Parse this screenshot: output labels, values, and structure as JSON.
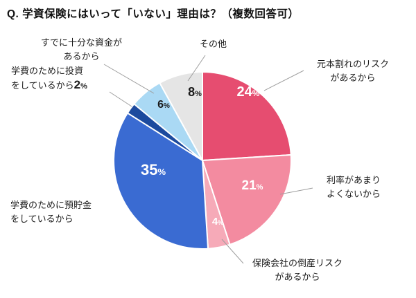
{
  "chart_data": {
    "type": "pie",
    "title": "Q. 学資保険にはいって「いない」理由は？（複数回答可）",
    "unit": "%",
    "total": 100,
    "start_angle_deg": 0,
    "direction": "clockwise",
    "legend_position": "none",
    "slices": [
      {
        "label": "元本割れのリスクがあるから",
        "label_lines": [
          "元本割れのリスク",
          "があるから"
        ],
        "value": 24,
        "color": "#e64d70",
        "pct_color": "#ffffff"
      },
      {
        "label": "利率があまりよくないから",
        "label_lines": [
          "利率があまり",
          "よくないから"
        ],
        "value": 21,
        "color": "#f38ba0",
        "pct_color": "#ffffff"
      },
      {
        "label": "保険会社の倒産リスクがあるから",
        "label_lines": [
          "保険会社の倒産リスク",
          "があるから"
        ],
        "value": 4,
        "color": "#f6aab8",
        "pct_color": "#ffffff"
      },
      {
        "label": "学費のために預貯金をしているから",
        "label_lines": [
          "学費のために預貯金",
          "をしているから"
        ],
        "value": 35,
        "color": "#3a6bd2",
        "pct_color": "#ffffff"
      },
      {
        "label": "学費のために投資をしているから",
        "label_lines": [
          "学費のために投資",
          "をしているから"
        ],
        "value": 2,
        "color": "#1c4a9e",
        "pct_color": "#1a1a1a"
      },
      {
        "label": "すでに十分な資金があるから",
        "label_lines": [
          "すでに十分な資金が",
          "あるから"
        ],
        "value": 6,
        "color": "#aad9f4",
        "pct_color": "#1a1a1a"
      },
      {
        "label": "その他",
        "label_lines": [
          "その他"
        ],
        "value": 8,
        "color": "#e5e5e5",
        "pct_color": "#1a1a1a"
      }
    ]
  }
}
